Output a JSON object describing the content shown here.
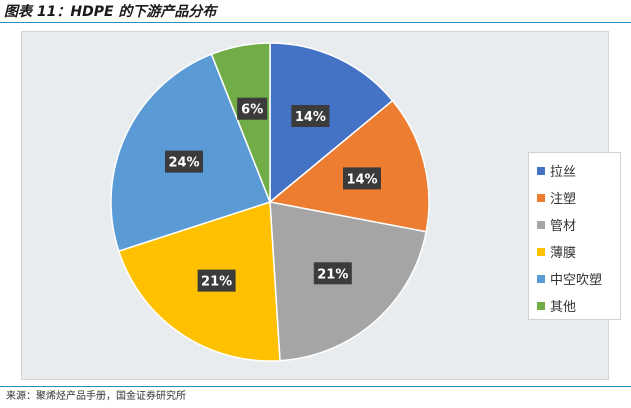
{
  "figure": {
    "title": "图表 11：HDPE 的下游产品分布",
    "source": "来源：聚烯烃产品手册，国金证券研究所"
  },
  "colors": {
    "rule": "#2a8fc0",
    "plot_background": "#e9ecee"
  },
  "chart_data": {
    "type": "pie",
    "title": "",
    "categories": [
      "拉丝",
      "注塑",
      "管材",
      "薄膜",
      "中空吹塑",
      "其他"
    ],
    "values": [
      14,
      14,
      21,
      21,
      24,
      6
    ],
    "unit": "%",
    "data_labels": [
      "14%",
      "14%",
      "21%",
      "21%",
      "24%",
      "6%"
    ],
    "colors": [
      "#4472c4",
      "#ed7d31",
      "#a5a5a5",
      "#ffc000",
      "#5b9bd5",
      "#70ad47"
    ],
    "start_angle": "12 o'clock",
    "direction": "clockwise",
    "legend_position": "right"
  }
}
